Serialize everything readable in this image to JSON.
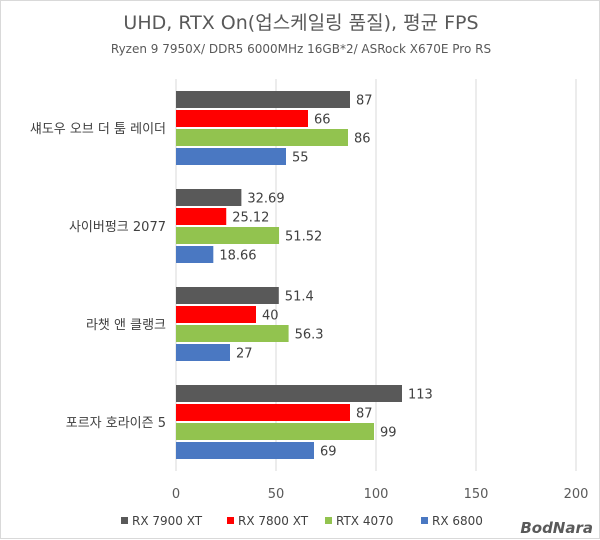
{
  "chart_data": {
    "type": "bar",
    "orientation": "horizontal",
    "title": "UHD, RTX On(업스케일링 품질), 평균 FPS",
    "subtitle": "Ryzen 9 7950X/ DDR5 6000MHz 16GB*2/ ASRock X670E Pro RS",
    "categories": [
      "섀도우 오브 더 툼 레이더",
      "사이버펑크 2077",
      "라챗 앤 클랭크",
      "포르자 호라이즌 5"
    ],
    "series": [
      {
        "name": "RX 7900 XT",
        "color": "#595959",
        "values": [
          87,
          32.69,
          51.4,
          113
        ],
        "labels": [
          "87",
          "32.69",
          "51.4",
          "113"
        ]
      },
      {
        "name": "RX 7800 XT",
        "color": "#ff0000",
        "values": [
          66,
          25.12,
          40,
          87
        ],
        "labels": [
          "66",
          "25.12",
          "40",
          "87"
        ]
      },
      {
        "name": "RTX 4070",
        "color": "#92c34f",
        "values": [
          86,
          51.52,
          56.3,
          99
        ],
        "labels": [
          "86",
          "51.52",
          "56.3",
          "99"
        ]
      },
      {
        "name": "RX 6800",
        "color": "#4a78c2",
        "values": [
          55,
          18.66,
          27,
          69
        ],
        "labels": [
          "55",
          "18.66",
          "27",
          "69"
        ]
      }
    ],
    "xlim": [
      0,
      200
    ],
    "ticks": [
      0,
      50,
      100,
      150,
      200
    ],
    "tick_labels": [
      "0",
      "50",
      "100",
      "150",
      "200"
    ],
    "grid": true,
    "legend_position": "bottom"
  },
  "watermark": "BodNara"
}
